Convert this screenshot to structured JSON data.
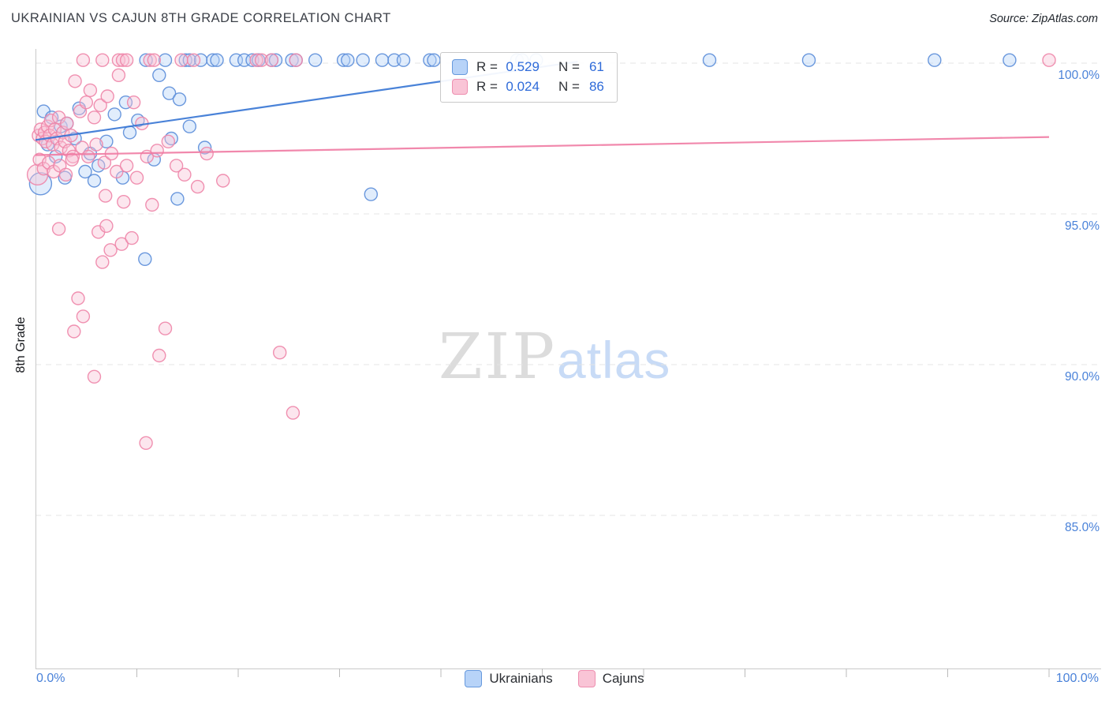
{
  "header": {
    "title": "UKRAINIAN VS CAJUN 8TH GRADE CORRELATION CHART",
    "source": "Source: ZipAtlas.com"
  },
  "axes": {
    "y_label": "8th Grade",
    "y_ticks": [
      {
        "value": 100,
        "label": "100.0%"
      },
      {
        "value": 95,
        "label": "95.0%"
      },
      {
        "value": 90,
        "label": "90.0%"
      },
      {
        "value": 85,
        "label": "85.0%"
      }
    ],
    "x_min_label": "0.0%",
    "x_max_label": "100.0%"
  },
  "legend_box": {
    "rows": [
      {
        "series": "Ukrainians",
        "r_label": "R =",
        "r_value": "0.529",
        "n_label": "N =",
        "n_value": "61"
      },
      {
        "series": "Cajuns",
        "r_label": "R =",
        "r_value": "0.024",
        "n_label": "N =",
        "n_value": "86"
      }
    ]
  },
  "bottom_legend": {
    "items": [
      {
        "label": "Ukrainians"
      },
      {
        "label": "Cajuns"
      }
    ]
  },
  "watermark": {
    "part1": "ZIP",
    "part2": "atlas"
  },
  "colors": {
    "accent_blue": "#4a82d9",
    "title_text": "#3c4048",
    "gridline": "#e4e4e4",
    "axis": "#c9c9c9",
    "tick": "#bbbbbb",
    "ukrainians_stroke": "#5b8dd9",
    "ukrainians_fill": "#b7d3f8",
    "cajuns_stroke": "#ee85a8",
    "cajuns_fill": "#f9c4d6",
    "trend_blue": "#3574d4",
    "trend_pink": "#ef7ba3",
    "watermark_gray": "#dcdcdc",
    "watermark_blue": "#c8dbf6"
  },
  "chart_data": {
    "type": "scatter",
    "title": "UKRAINIAN VS CAJUN 8TH GRADE CORRELATION CHART",
    "xlabel": "",
    "ylabel": "8th Grade",
    "xlim": [
      0,
      100
    ],
    "ylim": [
      80,
      100.5
    ],
    "x_unit": "%",
    "y_unit": "%",
    "grid": "horizontal-dashed",
    "legend_position": "top-center",
    "y_gridlines": [
      100,
      95,
      90,
      85
    ],
    "series": [
      {
        "name": "Ukrainians",
        "R": 0.529,
        "N": 61,
        "color": "#5b8dd9",
        "fill": "#b7d3f8",
        "points": [
          [
            10.9,
            100.1
          ],
          [
            12.8,
            100.1
          ],
          [
            14.8,
            100.1
          ],
          [
            15.2,
            100.1
          ],
          [
            16.3,
            100.1
          ],
          [
            17.5,
            100.1
          ],
          [
            17.9,
            100.1
          ],
          [
            19.8,
            100.1
          ],
          [
            20.6,
            100.1
          ],
          [
            21.4,
            100.1
          ],
          [
            22.0,
            100.1
          ],
          [
            23.3,
            100.1
          ],
          [
            23.7,
            100.1
          ],
          [
            25.3,
            100.1
          ],
          [
            25.7,
            100.1
          ],
          [
            27.6,
            100.1
          ],
          [
            30.4,
            100.1
          ],
          [
            30.8,
            100.1
          ],
          [
            32.3,
            100.1
          ],
          [
            34.2,
            100.1
          ],
          [
            35.4,
            100.1
          ],
          [
            36.3,
            100.1
          ],
          [
            38.9,
            100.1
          ],
          [
            39.3,
            100.1
          ],
          [
            47.5,
            100.1
          ],
          [
            48.0,
            100.1
          ],
          [
            49.4,
            100.1
          ],
          [
            66.5,
            100.1
          ],
          [
            76.3,
            100.1
          ],
          [
            88.7,
            100.1
          ],
          [
            96.1,
            100.1
          ],
          [
            12.2,
            99.6
          ],
          [
            13.2,
            99.0
          ],
          [
            14.2,
            98.8
          ],
          [
            8.9,
            98.7
          ],
          [
            7.8,
            98.3
          ],
          [
            10.1,
            98.1
          ],
          [
            15.2,
            97.9
          ],
          [
            16.7,
            97.2
          ],
          [
            0.8,
            98.4
          ],
          [
            1.6,
            98.2
          ],
          [
            2.5,
            97.9
          ],
          [
            3.1,
            98.0
          ],
          [
            4.3,
            98.5
          ],
          [
            3.9,
            97.5
          ],
          [
            1.2,
            97.3
          ],
          [
            2.0,
            96.9
          ],
          [
            5.4,
            97.0
          ],
          [
            6.2,
            96.6
          ],
          [
            0.5,
            96.0,
            14
          ],
          [
            5.8,
            96.1
          ],
          [
            8.6,
            96.2
          ],
          [
            14.0,
            95.5
          ],
          [
            33.1,
            95.65
          ],
          [
            10.8,
            93.5
          ],
          [
            9.3,
            97.7
          ],
          [
            11.7,
            96.8
          ],
          [
            7.0,
            97.4
          ],
          [
            4.9,
            96.4
          ],
          [
            2.9,
            96.2
          ],
          [
            13.4,
            97.5
          ]
        ]
      },
      {
        "name": "Cajuns",
        "R": 0.024,
        "N": 86,
        "color": "#ee85a8",
        "fill": "#f9c4d6",
        "points": [
          [
            4.7,
            100.1
          ],
          [
            6.6,
            100.1
          ],
          [
            8.2,
            100.1
          ],
          [
            8.6,
            100.1
          ],
          [
            9.0,
            100.1
          ],
          [
            11.3,
            100.1
          ],
          [
            11.7,
            100.1
          ],
          [
            14.4,
            100.1
          ],
          [
            15.6,
            100.1
          ],
          [
            21.8,
            100.1
          ],
          [
            22.3,
            100.1
          ],
          [
            23.3,
            100.1
          ],
          [
            25.7,
            100.1
          ],
          [
            100.0,
            100.1
          ],
          [
            0.2,
            96.3,
            13
          ],
          [
            0.3,
            97.6
          ],
          [
            0.5,
            97.8
          ],
          [
            0.7,
            97.5
          ],
          [
            0.9,
            97.7
          ],
          [
            1.0,
            97.4
          ],
          [
            1.2,
            97.9
          ],
          [
            1.4,
            97.6
          ],
          [
            1.5,
            98.1
          ],
          [
            1.7,
            97.3
          ],
          [
            1.9,
            97.8
          ],
          [
            2.1,
            97.5
          ],
          [
            2.3,
            98.2
          ],
          [
            2.5,
            97.2
          ],
          [
            2.7,
            97.7
          ],
          [
            2.9,
            97.4
          ],
          [
            3.1,
            98.0
          ],
          [
            3.3,
            97.1
          ],
          [
            3.5,
            97.6
          ],
          [
            3.7,
            96.9
          ],
          [
            0.4,
            96.8
          ],
          [
            0.8,
            96.5
          ],
          [
            1.3,
            96.7
          ],
          [
            1.8,
            96.4
          ],
          [
            2.4,
            96.6
          ],
          [
            3.0,
            96.3
          ],
          [
            3.6,
            96.8
          ],
          [
            3.9,
            99.4
          ],
          [
            5.4,
            99.1
          ],
          [
            8.2,
            99.6
          ],
          [
            4.4,
            98.4
          ],
          [
            5.0,
            98.7
          ],
          [
            5.8,
            98.2
          ],
          [
            6.4,
            98.6
          ],
          [
            7.1,
            98.9
          ],
          [
            9.7,
            98.7
          ],
          [
            10.5,
            98.0
          ],
          [
            4.6,
            97.2
          ],
          [
            5.2,
            96.9
          ],
          [
            6.0,
            97.3
          ],
          [
            6.8,
            96.7
          ],
          [
            7.5,
            97.0
          ],
          [
            8.0,
            96.4
          ],
          [
            9.0,
            96.6
          ],
          [
            10.0,
            96.2
          ],
          [
            11.0,
            96.9
          ],
          [
            12.0,
            97.1
          ],
          [
            6.9,
            95.6
          ],
          [
            8.7,
            95.4
          ],
          [
            2.3,
            94.5
          ],
          [
            6.2,
            94.4
          ],
          [
            7.4,
            93.8
          ],
          [
            6.6,
            93.4
          ],
          [
            8.5,
            94.0
          ],
          [
            3.8,
            91.1
          ],
          [
            4.7,
            91.6
          ],
          [
            4.2,
            92.2
          ],
          [
            12.8,
            91.2
          ],
          [
            12.2,
            90.3
          ],
          [
            5.8,
            89.6
          ],
          [
            24.1,
            90.4
          ],
          [
            25.4,
            88.4
          ],
          [
            10.9,
            87.4
          ],
          [
            13.1,
            97.4
          ],
          [
            14.7,
            96.3
          ],
          [
            16.0,
            95.9
          ],
          [
            13.9,
            96.6
          ],
          [
            11.5,
            95.3
          ],
          [
            7.0,
            94.6
          ],
          [
            9.5,
            94.2
          ],
          [
            16.9,
            97.0
          ],
          [
            18.5,
            96.1
          ]
        ]
      }
    ],
    "trend_lines": [
      {
        "series": "Ukrainians",
        "color": "#3574d4",
        "x": [
          0,
          53.5
        ],
        "y": [
          97.45,
          100.05
        ]
      },
      {
        "series": "Cajuns",
        "color": "#ef7ba3",
        "x": [
          0,
          100
        ],
        "y": [
          96.95,
          97.55
        ]
      }
    ]
  }
}
